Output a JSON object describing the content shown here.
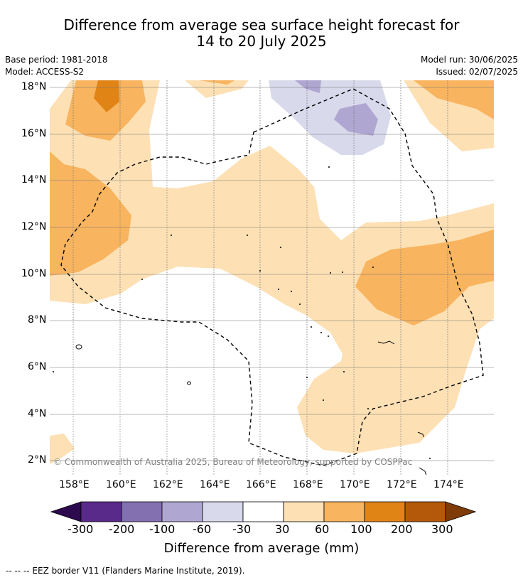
{
  "title_line1": "Difference from average sea surface height forecast for",
  "title_line2": "14 to 20 July 2025",
  "meta": {
    "base_period": "Base period: 1981-2018",
    "model": "Model: ACCESS-S2",
    "model_run": "Model run: 30/06/2025",
    "issued": "Issued: 02/07/2025"
  },
  "map": {
    "lat_labels": [
      "18°N",
      "16°N",
      "14°N",
      "12°N",
      "10°N",
      "8°N",
      "6°N",
      "4°N",
      "2°N"
    ],
    "lon_labels": [
      "158°E",
      "160°E",
      "162°E",
      "164°E",
      "166°E",
      "168°E",
      "170°E",
      "172°E",
      "174°E"
    ],
    "copyright": "© Commonwealth of Australia 2025, Bureau of Meteorology, supported by COSPPac",
    "grid": true
  },
  "colorbar": {
    "tick_labels": [
      "-300",
      "-200",
      "-100",
      "-60",
      "-30",
      "30",
      "60",
      "100",
      "200",
      "300"
    ],
    "colors": [
      "#2d0a4e",
      "#5a2a8a",
      "#8370b0",
      "#b0a6d2",
      "#d9d9ec",
      "#ffffff",
      "#fde0b4",
      "#f8b45e",
      "#e08416",
      "#b4590a",
      "#7f3b08"
    ],
    "label": "Difference from average (mm)"
  },
  "footer": "--  --  -- EEZ border V11 (Flanders Marine Institute, 2019)."
}
